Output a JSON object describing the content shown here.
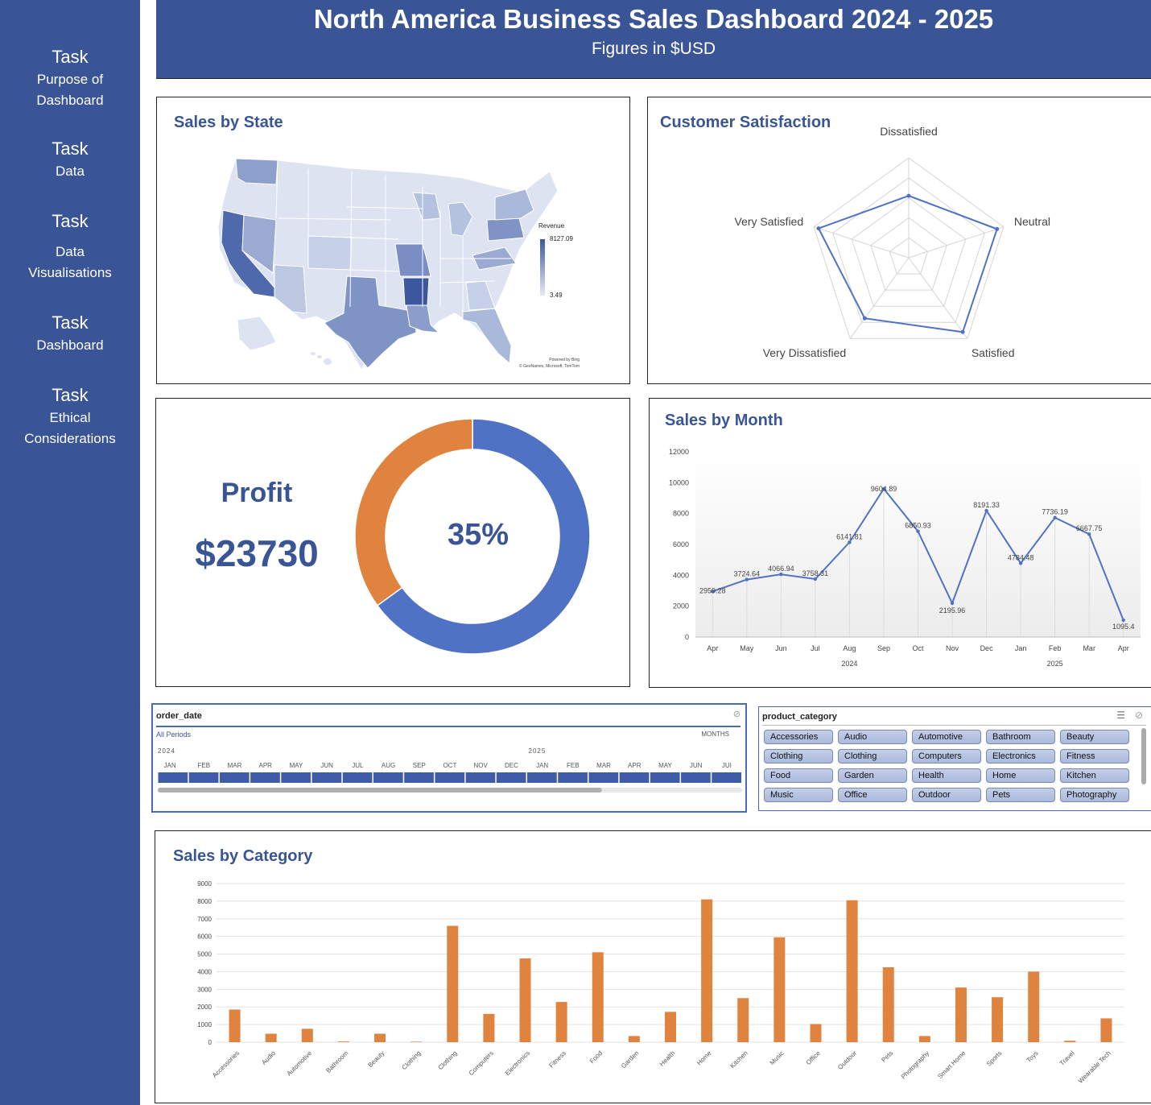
{
  "sidebar": {
    "items": [
      {
        "task": "Task",
        "label": "Purpose of Dashboard"
      },
      {
        "task": "Task",
        "label": "Data"
      },
      {
        "task": "Task",
        "label": "Data Visualisations"
      },
      {
        "task": "Task",
        "label": "Dashboard"
      },
      {
        "task": "Task",
        "label": "Ethical Considerations"
      }
    ]
  },
  "header": {
    "title": "North America Business Sales Dashboard 2024 - 2025",
    "subtitle": "Figures in $USD"
  },
  "colors": {
    "brand": "#3a5595",
    "accent": "#4f72c4",
    "orange": "#e0833f"
  },
  "map": {
    "title": "Sales by State",
    "legend_title": "Revenue",
    "legend_max": "8127.09",
    "legend_min": "3.49",
    "credit_line1": "Powered by Bing",
    "credit_line2": "© GeoNames, Microsoft, TomTom"
  },
  "satisfaction": {
    "title": "Customer Satisfaction",
    "chart_data": {
      "type": "radar",
      "axes": [
        "Dissatisfied",
        "Neutral",
        "Satisfied",
        "Very Dissatisfied",
        "Very Satisfied"
      ],
      "values": [
        0.62,
        0.93,
        0.92,
        0.75,
        0.95
      ],
      "scale": "relative (0-1)"
    }
  },
  "profit": {
    "label": "Profit",
    "value": "$23730",
    "percent_label": "35%",
    "chart_data": {
      "type": "pie",
      "slices": [
        {
          "value": 65
        },
        {
          "value": 35
        }
      ]
    }
  },
  "monthly": {
    "title": "Sales by Month",
    "chart_data": {
      "type": "line",
      "categories": [
        "Apr",
        "May",
        "Jun",
        "Jul",
        "Aug",
        "Sep",
        "Oct",
        "Nov",
        "Dec",
        "Jan",
        "Feb",
        "Mar",
        "Apr"
      ],
      "years": [
        {
          "label": "2024",
          "center_index": 4
        },
        {
          "label": "2025",
          "center_index": 10
        }
      ],
      "values": [
        2959.28,
        3724.64,
        4066.94,
        3758.31,
        6141.81,
        9604.89,
        6850.93,
        2195.96,
        8191.33,
        4784.48,
        7736.19,
        6667.75,
        1095.4
      ],
      "labels": [
        "2959.28",
        "3724.64",
        "4066.94",
        "3758.31",
        "6141.81",
        "9604.89",
        "6850.93",
        "2195.96",
        "8191.33",
        "4784.48",
        "7736.19",
        "6667.75",
        "1095.4"
      ],
      "yticks": [
        "0",
        "2000",
        "4000",
        "6000",
        "8000",
        "10000",
        "12000"
      ],
      "ylim": [
        0,
        12000
      ]
    }
  },
  "order_slicer": {
    "title": "order_date",
    "all_periods": "All Periods",
    "unit": "MONTHS",
    "year1": "2024",
    "year2": "2025",
    "months": [
      "JAN",
      "FEB",
      "MAR",
      "APR",
      "MAY",
      "JUN",
      "JUL",
      "AUG",
      "SEP",
      "OCT",
      "NOV",
      "DEC",
      "JAN",
      "FEB",
      "MAR",
      "APR",
      "MAY",
      "JUN",
      "JUI"
    ],
    "scrollbar_fraction": 0.76
  },
  "category_slicer": {
    "title": "product_category",
    "items": [
      "Accessories",
      "Audio",
      "Automotive",
      "Bathroom",
      "Beauty",
      "Clothing",
      "Clothing",
      "Computers",
      "Electronics",
      "Fitness",
      "Food",
      "Garden",
      "Health",
      "Home",
      "Kitchen",
      "Music",
      "Office",
      "Outdoor",
      "Pets",
      "Photography"
    ]
  },
  "category_chart": {
    "title": "Sales by Category",
    "chart_data": {
      "type": "bar",
      "categories": [
        "Accessories",
        "Audio",
        "Automotive",
        "Bathroom",
        "Beauty",
        "Clothing",
        "Clothing",
        "Computers",
        "Electronics",
        "Fitness",
        "Food",
        "Garden",
        "Health",
        "Home",
        "Kitchen",
        "Music",
        "Office",
        "Outdoor",
        "Pets",
        "Photography",
        "Smart Home",
        "Sports",
        "Toys",
        "Travel",
        "Wearable Tech"
      ],
      "values": [
        1850,
        480,
        760,
        40,
        480,
        30,
        6600,
        1600,
        4750,
        2280,
        5100,
        350,
        1720,
        8100,
        2500,
        5950,
        1030,
        8050,
        4250,
        350,
        3100,
        2550,
        4000,
        80,
        1350
      ],
      "yticks": [
        "0",
        "1000",
        "2000",
        "3000",
        "4000",
        "5000",
        "6000",
        "7000",
        "8000",
        "9000"
      ],
      "ylim": [
        0,
        9000
      ]
    }
  }
}
